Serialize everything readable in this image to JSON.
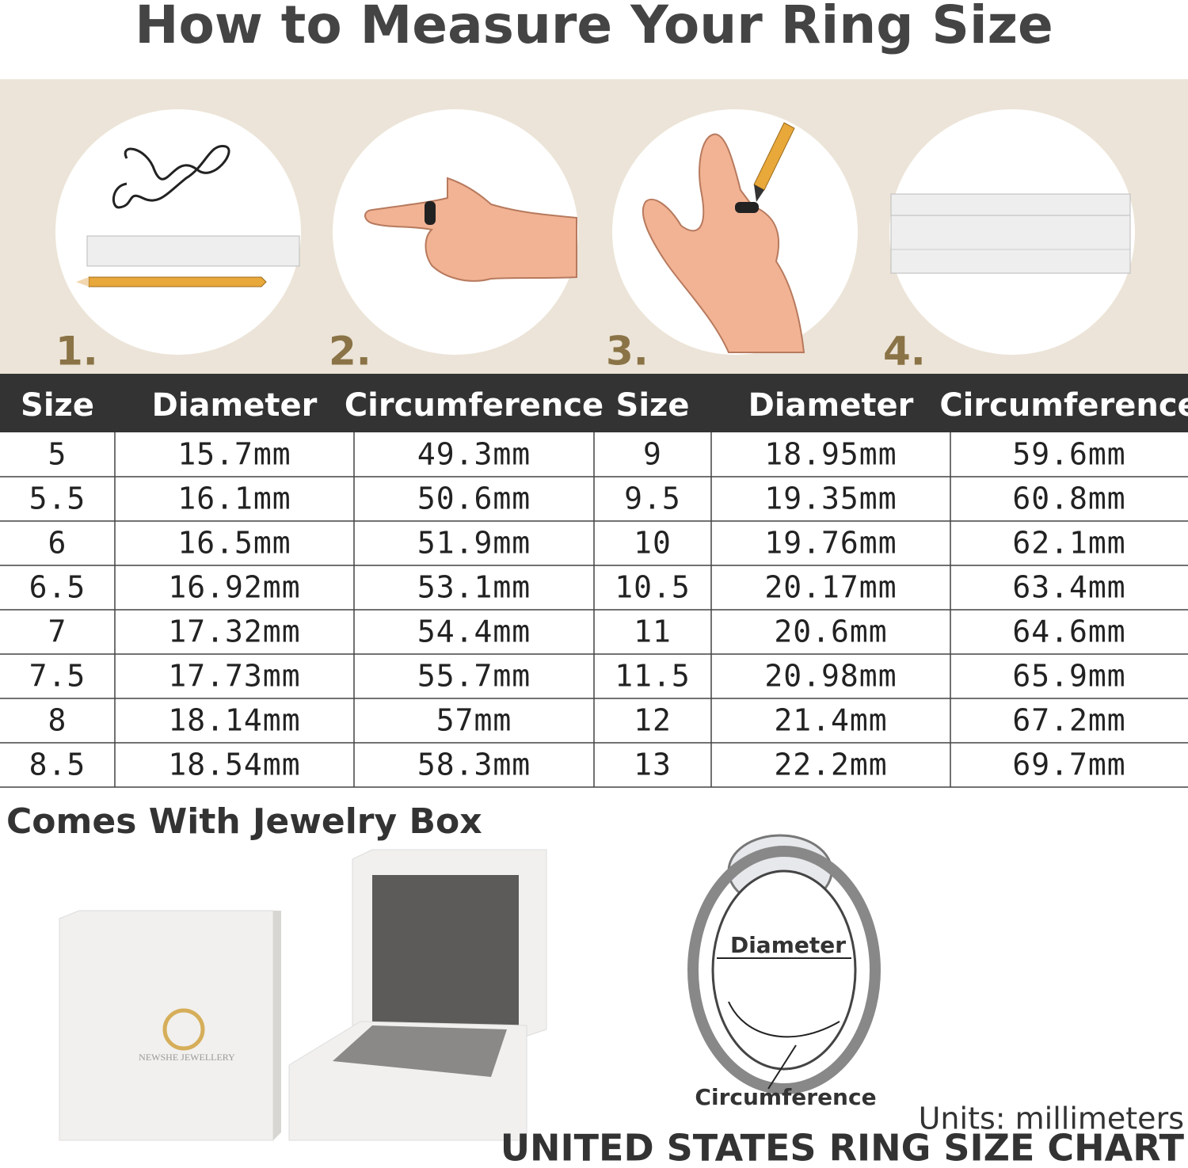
{
  "header": {
    "title": "How to Measure Your Ring Size"
  },
  "steps": [
    "1.",
    "2.",
    "3.",
    "4."
  ],
  "table": {
    "headers": [
      "Size",
      "Diameter",
      "Circumference",
      "Size",
      "Diameter",
      "Circumference"
    ],
    "rows": [
      [
        "5",
        "15.7mm",
        "49.3mm",
        "9",
        "18.95mm",
        "59.6mm"
      ],
      [
        "5.5",
        "16.1mm",
        "50.6mm",
        "9.5",
        "19.35mm",
        "60.8mm"
      ],
      [
        "6",
        "16.5mm",
        "51.9mm",
        "10",
        "19.76mm",
        "62.1mm"
      ],
      [
        "6.5",
        "16.92mm",
        "53.1mm",
        "10.5",
        "20.17mm",
        "63.4mm"
      ],
      [
        "7",
        "17.32mm",
        "54.4mm",
        "11",
        "20.6mm",
        "64.6mm"
      ],
      [
        "7.5",
        "17.73mm",
        "55.7mm",
        "11.5",
        "20.98mm",
        "65.9mm"
      ],
      [
        "8",
        "18.14mm",
        "57mm",
        "12",
        "21.4mm",
        "67.2mm"
      ],
      [
        "8.5",
        "18.54mm",
        "58.3mm",
        "13",
        "22.2mm",
        "69.7mm"
      ]
    ]
  },
  "box_section": {
    "title": "Comes With Jewelry Box",
    "brand": "NEWSHE JEWELLERY"
  },
  "ring": {
    "diameter_label": "Diameter",
    "circumference_label": "Circumference"
  },
  "footer": {
    "units": "Units: millimeters",
    "title": "UNITED STATES RING SIZE CHART"
  }
}
